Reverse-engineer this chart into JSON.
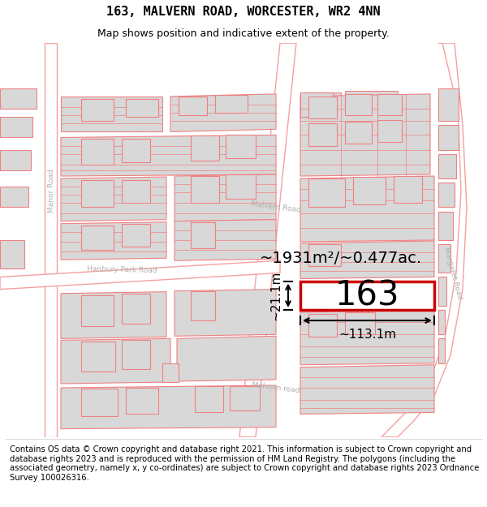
{
  "title": "163, MALVERN ROAD, WORCESTER, WR2 4NN",
  "subtitle": "Map shows position and indicative extent of the property.",
  "footer": "Contains OS data © Crown copyright and database right 2021. This information is subject to Crown copyright and database rights 2023 and is reproduced with the permission of HM Land Registry. The polygons (including the associated geometry, namely x, y co-ordinates) are subject to Crown copyright and database rights 2023 Ordnance Survey 100026316.",
  "area_label": "~1931m²/~0.477ac.",
  "width_label": "~113.1m",
  "height_label": "~21.1m",
  "property_number": "163",
  "bg_color": "#ffffff",
  "road_color": "#f5a0a0",
  "building_fill": "#d8d8d8",
  "building_edge": "#f08080",
  "highlight_color": "#cc0000",
  "highlight_fill": "#ffffff",
  "text_color": "#000000",
  "road_label_color": "#aaaaaa",
  "title_fontsize": 11,
  "subtitle_fontsize": 9,
  "footer_fontsize": 7.2,
  "area_fontsize": 14,
  "number_fontsize": 30,
  "measure_fontsize": 11
}
